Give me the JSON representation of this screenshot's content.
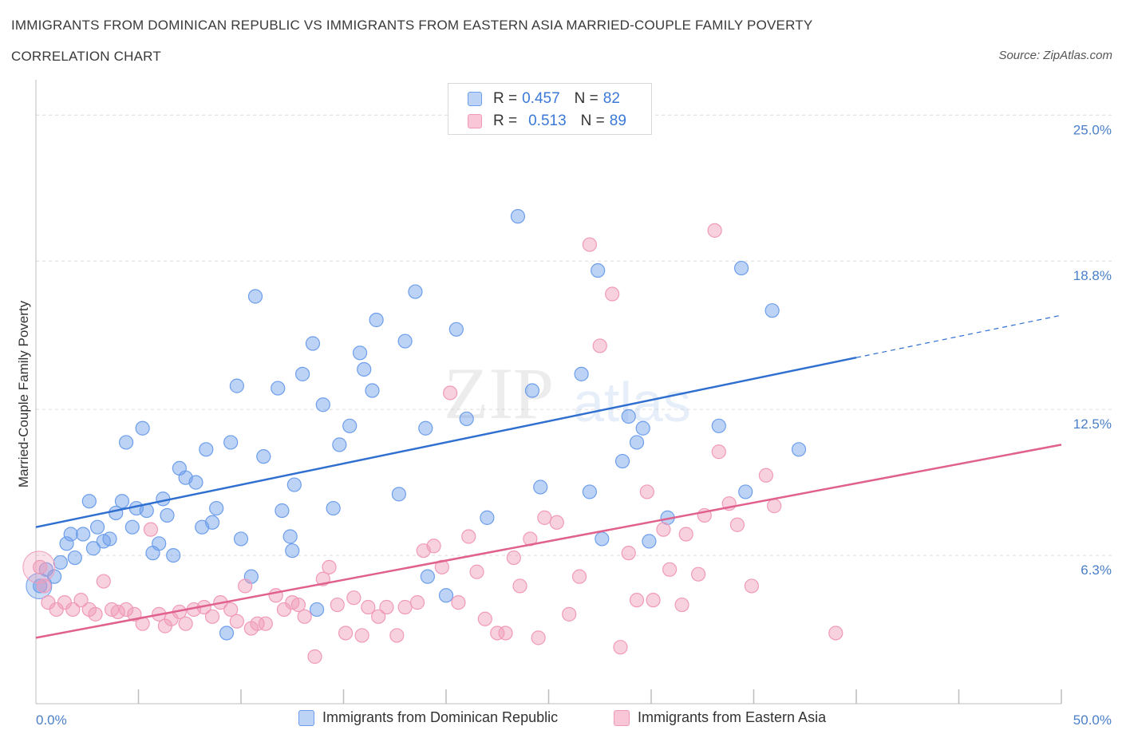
{
  "title_line1": "IMMIGRANTS FROM DOMINICAN REPUBLIC VS IMMIGRANTS FROM EASTERN ASIA MARRIED-COUPLE FAMILY POVERTY",
  "title_line2": "CORRELATION CHART",
  "source": "Source: ZipAtlas.com",
  "legend": {
    "series1": {
      "r_label": "R =",
      "r_value": "0.457",
      "n_label": "N =",
      "n_value": "82"
    },
    "series2": {
      "r_label": "R =",
      "r_value": "0.513",
      "n_label": "N =",
      "n_value": "89"
    }
  },
  "watermark": {
    "zip": "ZIP",
    "atlas": "atlas"
  },
  "chart_data": {
    "type": "scatter",
    "title": "IMMIGRANTS FROM DOMINICAN REPUBLIC VS IMMIGRANTS FROM EASTERN ASIA MARRIED-COUPLE FAMILY POVERTY CORRELATION CHART",
    "xlabel": "",
    "ylabel": "Married-Couple Family Poverty",
    "xlim": [
      0,
      50
    ],
    "ylim": [
      0,
      26.5
    ],
    "x_tick_labels": [
      "0.0%",
      "50.0%"
    ],
    "y_ticks": [
      6.3,
      12.5,
      18.8,
      25.0
    ],
    "y_tick_labels": [
      "6.3%",
      "12.5%",
      "18.8%",
      "25.0%"
    ],
    "grid": true,
    "legend_position": "top-center",
    "colors": {
      "series1": "#6d9eeb",
      "series2": "#f09ab8",
      "line1": "#2f6fd0",
      "line2": "#e0608e"
    },
    "series": [
      {
        "name": "Immigrants from Dominican Republic",
        "R": 0.457,
        "N": 82,
        "trend": {
          "x0": 0,
          "y0": 7.5,
          "x1": 40,
          "y1": 14.7,
          "dashed_to_x": 50,
          "dashed_to_y": 16.5
        },
        "points": [
          [
            0.2,
            5.0
          ],
          [
            0.5,
            5.7
          ],
          [
            0.9,
            5.4
          ],
          [
            1.2,
            6.0
          ],
          [
            1.5,
            6.8
          ],
          [
            1.7,
            7.2
          ],
          [
            1.9,
            6.2
          ],
          [
            2.3,
            7.2
          ],
          [
            2.6,
            8.6
          ],
          [
            2.8,
            6.6
          ],
          [
            3.0,
            7.5
          ],
          [
            3.3,
            6.9
          ],
          [
            3.6,
            7.0
          ],
          [
            3.9,
            8.1
          ],
          [
            4.2,
            8.6
          ],
          [
            4.4,
            11.1
          ],
          [
            4.7,
            7.5
          ],
          [
            4.9,
            8.3
          ],
          [
            5.2,
            11.7
          ],
          [
            5.4,
            8.2
          ],
          [
            5.7,
            6.4
          ],
          [
            6.0,
            6.8
          ],
          [
            6.2,
            8.7
          ],
          [
            6.4,
            8.0
          ],
          [
            6.7,
            6.3
          ],
          [
            7.0,
            10.0
          ],
          [
            7.3,
            9.6
          ],
          [
            7.8,
            9.4
          ],
          [
            8.1,
            7.5
          ],
          [
            8.3,
            10.8
          ],
          [
            8.6,
            7.7
          ],
          [
            8.8,
            8.3
          ],
          [
            9.3,
            3.0
          ],
          [
            9.5,
            11.1
          ],
          [
            9.8,
            13.5
          ],
          [
            10.0,
            7.0
          ],
          [
            10.5,
            5.4
          ],
          [
            10.7,
            17.3
          ],
          [
            11.1,
            10.5
          ],
          [
            11.8,
            13.4
          ],
          [
            12.0,
            8.2
          ],
          [
            12.4,
            7.1
          ],
          [
            12.5,
            6.5
          ],
          [
            12.6,
            9.3
          ],
          [
            13.0,
            14.0
          ],
          [
            13.5,
            15.3
          ],
          [
            13.7,
            4.0
          ],
          [
            14.0,
            12.7
          ],
          [
            14.5,
            8.3
          ],
          [
            14.8,
            11.0
          ],
          [
            15.3,
            11.8
          ],
          [
            15.8,
            14.9
          ],
          [
            16.0,
            14.2
          ],
          [
            16.4,
            13.3
          ],
          [
            16.6,
            16.3
          ],
          [
            17.7,
            8.9
          ],
          [
            18.0,
            15.4
          ],
          [
            18.5,
            17.5
          ],
          [
            19.0,
            11.7
          ],
          [
            19.1,
            5.4
          ],
          [
            20.0,
            4.6
          ],
          [
            20.5,
            15.9
          ],
          [
            21.0,
            12.1
          ],
          [
            22.0,
            7.9
          ],
          [
            23.5,
            20.7
          ],
          [
            24.2,
            13.3
          ],
          [
            24.6,
            9.2
          ],
          [
            26.6,
            14.0
          ],
          [
            27.0,
            9.0
          ],
          [
            27.4,
            18.4
          ],
          [
            27.6,
            7.0
          ],
          [
            28.6,
            10.3
          ],
          [
            28.9,
            12.2
          ],
          [
            29.3,
            11.1
          ],
          [
            29.6,
            11.7
          ],
          [
            29.9,
            6.9
          ],
          [
            30.8,
            7.9
          ],
          [
            33.3,
            11.8
          ],
          [
            34.4,
            18.5
          ],
          [
            34.6,
            9.0
          ],
          [
            35.9,
            16.7
          ],
          [
            37.2,
            10.8
          ]
        ]
      },
      {
        "name": "Immigrants from Eastern Asia",
        "R": 0.513,
        "N": 89,
        "trend": {
          "x0": 0,
          "y0": 2.8,
          "x1": 50,
          "y1": 11.0
        },
        "points": [
          [
            0.2,
            5.8
          ],
          [
            0.4,
            5.0
          ],
          [
            0.6,
            4.3
          ],
          [
            1.0,
            4.0
          ],
          [
            1.4,
            4.3
          ],
          [
            1.8,
            4.0
          ],
          [
            2.2,
            4.4
          ],
          [
            2.6,
            4.0
          ],
          [
            2.9,
            3.8
          ],
          [
            3.3,
            5.2
          ],
          [
            3.7,
            4.0
          ],
          [
            4.0,
            3.9
          ],
          [
            4.4,
            4.0
          ],
          [
            4.8,
            3.8
          ],
          [
            5.2,
            3.4
          ],
          [
            5.6,
            7.4
          ],
          [
            6.0,
            3.8
          ],
          [
            6.3,
            3.3
          ],
          [
            6.6,
            3.6
          ],
          [
            7.0,
            3.9
          ],
          [
            7.3,
            3.4
          ],
          [
            7.7,
            4.0
          ],
          [
            8.2,
            4.1
          ],
          [
            8.6,
            3.7
          ],
          [
            9.0,
            4.3
          ],
          [
            9.5,
            4.0
          ],
          [
            9.8,
            3.5
          ],
          [
            10.2,
            5.0
          ],
          [
            10.5,
            3.2
          ],
          [
            10.8,
            3.4
          ],
          [
            11.2,
            3.4
          ],
          [
            11.7,
            4.6
          ],
          [
            12.1,
            4.0
          ],
          [
            12.5,
            4.3
          ],
          [
            12.8,
            4.2
          ],
          [
            13.1,
            3.7
          ],
          [
            13.6,
            2.0
          ],
          [
            14.0,
            5.3
          ],
          [
            14.3,
            5.8
          ],
          [
            14.7,
            4.2
          ],
          [
            15.1,
            3.0
          ],
          [
            15.5,
            4.5
          ],
          [
            15.9,
            2.9
          ],
          [
            16.2,
            4.1
          ],
          [
            16.7,
            3.7
          ],
          [
            17.1,
            4.1
          ],
          [
            17.6,
            2.9
          ],
          [
            18.0,
            4.1
          ],
          [
            18.6,
            4.3
          ],
          [
            18.9,
            6.5
          ],
          [
            19.4,
            6.7
          ],
          [
            19.8,
            5.8
          ],
          [
            20.2,
            13.2
          ],
          [
            20.6,
            4.3
          ],
          [
            21.1,
            7.1
          ],
          [
            21.5,
            5.6
          ],
          [
            21.9,
            3.6
          ],
          [
            22.5,
            3.0
          ],
          [
            22.9,
            3.0
          ],
          [
            23.3,
            6.2
          ],
          [
            23.6,
            5.0
          ],
          [
            24.1,
            7.0
          ],
          [
            24.5,
            2.8
          ],
          [
            24.8,
            7.9
          ],
          [
            25.4,
            7.7
          ],
          [
            26.0,
            3.8
          ],
          [
            26.5,
            5.4
          ],
          [
            27.0,
            19.5
          ],
          [
            27.5,
            15.2
          ],
          [
            28.1,
            17.4
          ],
          [
            28.5,
            2.4
          ],
          [
            28.9,
            6.4
          ],
          [
            29.3,
            4.4
          ],
          [
            29.8,
            9.0
          ],
          [
            30.1,
            4.4
          ],
          [
            30.6,
            7.4
          ],
          [
            30.9,
            5.7
          ],
          [
            31.5,
            4.2
          ],
          [
            31.7,
            7.2
          ],
          [
            32.3,
            5.5
          ],
          [
            32.6,
            8.0
          ],
          [
            33.1,
            20.1
          ],
          [
            33.3,
            10.7
          ],
          [
            33.8,
            8.5
          ],
          [
            34.2,
            7.6
          ],
          [
            34.9,
            5.0
          ],
          [
            35.6,
            9.7
          ],
          [
            36.0,
            8.4
          ],
          [
            39.0,
            3.0
          ]
        ]
      }
    ]
  },
  "bottom_legend": {
    "series1_label": "Immigrants from Dominican Republic",
    "series2_label": "Immigrants from Eastern Asia"
  }
}
